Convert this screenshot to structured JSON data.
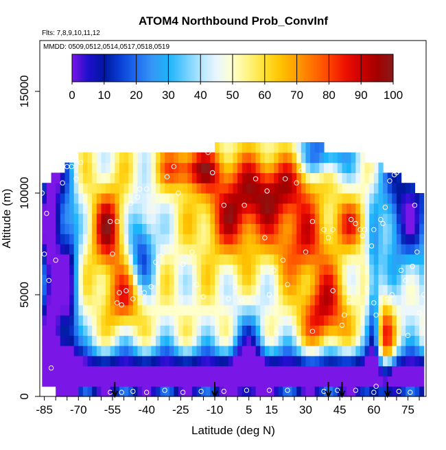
{
  "chart_data": {
    "type": "heatmap",
    "title": "ATOM4 Northbound Prob_ConvInf",
    "subtitle_flights": "Flts: 7,8,9,10,11,12",
    "subtitle_dates": "MMDD: 0509,0512,0514,0517,0518,0519",
    "xlabel": "Latitude (deg N)",
    "ylabel": "Altitude (m)",
    "xlim": [
      -87,
      83
    ],
    "ylim": [
      0,
      17500
    ],
    "x_ticks": [
      -85,
      -70,
      -55,
      -40,
      -25,
      -10,
      5,
      15,
      30,
      45,
      60,
      75
    ],
    "y_ticks": [
      0,
      5000,
      10000,
      15000
    ],
    "colorbar": {
      "min": 0,
      "max": 100,
      "ticks": [
        0,
        10,
        20,
        30,
        40,
        50,
        60,
        70,
        80,
        90,
        100
      ],
      "colors": [
        "#7a16e6",
        "#1e0fcc",
        "#00189e",
        "#0a3fd6",
        "#1e6cf0",
        "#3696f5",
        "#1ab4fa",
        "#66ccff",
        "#b3e6ff",
        "#eaf6ff",
        "#ffffcc",
        "#fff380",
        "#ffe02e",
        "#ffc200",
        "#ff9c00",
        "#ff7000",
        "#ff4400",
        "#ee1100",
        "#cc0000",
        "#a30000",
        "#8a1a1a"
      ]
    },
    "lat_bins": [
      -86,
      -84,
      -82,
      -80,
      -78,
      -76,
      -74,
      -72,
      -70,
      -68,
      -66,
      -64,
      -62,
      -60,
      -58,
      -56,
      -54,
      -52,
      -50,
      -48,
      -46,
      -44,
      -42,
      -40,
      -38,
      -36,
      -34,
      -32,
      -30,
      -28,
      -26,
      -24,
      -22,
      -20,
      -18,
      -16,
      -14,
      -12,
      -10,
      -8,
      -6,
      -4,
      -2,
      0,
      2,
      4,
      6,
      8,
      10,
      12,
      14,
      16,
      18,
      20,
      22,
      24,
      26,
      28,
      30,
      32,
      34,
      36,
      38,
      40,
      42,
      44,
      46,
      48,
      50,
      52,
      54,
      56,
      58,
      60,
      62,
      64,
      66,
      68,
      70,
      72,
      74,
      76,
      78,
      80
    ],
    "alt_bins": [
      0,
      500,
      1000,
      1500,
      2000,
      2500,
      3000,
      3500,
      4000,
      4500,
      5000,
      5500,
      6000,
      6500,
      7000,
      7500,
      8000,
      8500,
      9000,
      9500,
      10000,
      10500,
      11000,
      11500,
      12000
    ],
    "profile_latitudes": [
      -54,
      -10,
      40,
      46,
      66
    ],
    "points": [
      [
        -86,
        10000
      ],
      [
        -84,
        9000
      ],
      [
        -85,
        7000
      ],
      [
        -83,
        5700
      ],
      [
        -80,
        6700
      ],
      [
        -82,
        1400
      ],
      [
        -77,
        10500
      ],
      [
        -75,
        11300
      ],
      [
        -73,
        11300
      ],
      [
        -71,
        10700
      ],
      [
        -69,
        11500
      ],
      [
        -56,
        8600
      ],
      [
        -53,
        8600
      ],
      [
        -55,
        7000
      ],
      [
        -52,
        5100
      ],
      [
        -53,
        4600
      ],
      [
        -51,
        4500
      ],
      [
        -49,
        5200
      ],
      [
        -46,
        4800
      ],
      [
        -47,
        9500
      ],
      [
        -44,
        9800
      ],
      [
        -43,
        10200
      ],
      [
        -40,
        10200
      ],
      [
        -41,
        5100
      ],
      [
        -38,
        5400
      ],
      [
        -36,
        6600
      ],
      [
        -34,
        6900
      ],
      [
        -31,
        10800
      ],
      [
        -28,
        11300
      ],
      [
        -26,
        10000
      ],
      [
        -24,
        6500
      ],
      [
        -20,
        7100
      ],
      [
        -18,
        5500
      ],
      [
        -15,
        4900
      ],
      [
        -13,
        12000
      ],
      [
        -11,
        11000
      ],
      [
        -6,
        9400
      ],
      [
        -4,
        4800
      ],
      [
        -1,
        5400
      ],
      [
        2,
        4700
      ],
      [
        3,
        9400
      ],
      [
        8,
        10700
      ],
      [
        12,
        7800
      ],
      [
        13,
        10100
      ],
      [
        14,
        5000
      ],
      [
        16,
        6200
      ],
      [
        17,
        3100
      ],
      [
        20,
        6700
      ],
      [
        21,
        10700
      ],
      [
        22,
        5500
      ],
      [
        26,
        10500
      ],
      [
        28,
        11100
      ],
      [
        30,
        7100
      ],
      [
        33,
        3200
      ],
      [
        33,
        8600
      ],
      [
        38,
        8200
      ],
      [
        40,
        7800
      ],
      [
        42,
        8200
      ],
      [
        42,
        5200
      ],
      [
        46,
        3500
      ],
      [
        47,
        4000
      ],
      [
        49,
        4700
      ],
      [
        50,
        8700
      ],
      [
        52,
        8500
      ],
      [
        54,
        8200
      ],
      [
        55,
        7900
      ],
      [
        56,
        8200
      ],
      [
        57,
        5300
      ],
      [
        60,
        4600
      ],
      [
        59,
        7400
      ],
      [
        60,
        8200
      ],
      [
        61,
        4000
      ],
      [
        63,
        8700
      ],
      [
        64,
        8500
      ],
      [
        65,
        9300
      ],
      [
        66,
        4800
      ],
      [
        67,
        10600
      ],
      [
        68,
        5000
      ],
      [
        69,
        10900
      ],
      [
        70,
        11000
      ],
      [
        71,
        11100
      ],
      [
        72,
        6200
      ],
      [
        74,
        5700
      ],
      [
        75,
        3000
      ],
      [
        77,
        6400
      ],
      [
        78,
        9400
      ],
      [
        79,
        7100
      ],
      [
        80,
        4100
      ],
      [
        82,
        5000
      ],
      [
        -56,
        200
      ],
      [
        -51,
        200
      ],
      [
        -46,
        250
      ],
      [
        -40,
        200
      ],
      [
        -32,
        300
      ],
      [
        -24,
        200
      ],
      [
        -16,
        250
      ],
      [
        -6,
        250
      ],
      [
        4,
        300
      ],
      [
        14,
        300
      ],
      [
        22,
        300
      ],
      [
        38,
        250
      ],
      [
        44,
        300
      ],
      [
        52,
        300
      ],
      [
        60,
        200
      ],
      [
        61,
        500
      ],
      [
        71,
        250
      ],
      [
        76,
        200
      ]
    ]
  }
}
